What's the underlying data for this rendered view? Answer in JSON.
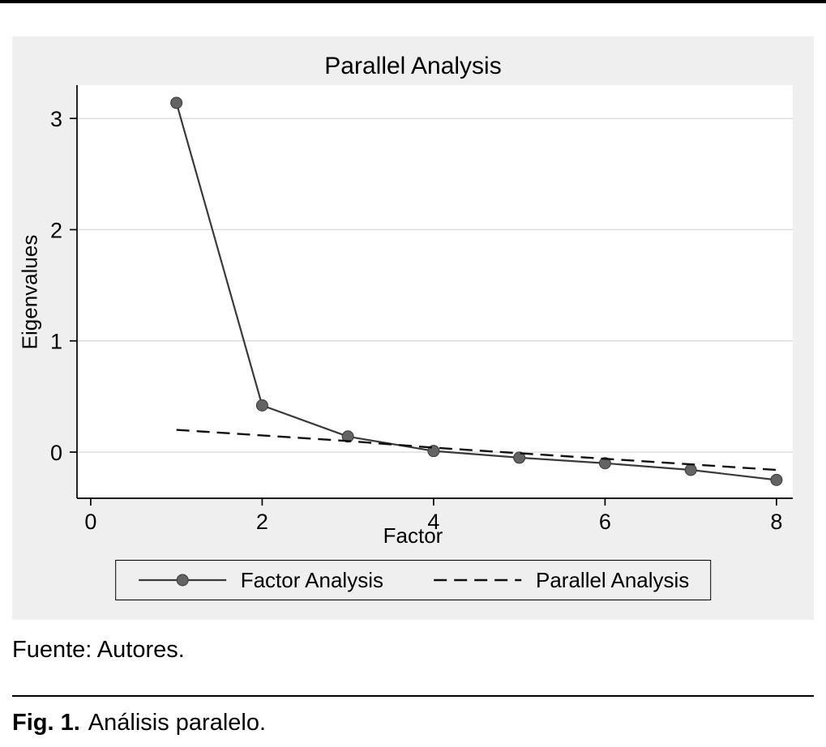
{
  "figure": {
    "source_note": "Fuente: Autores.",
    "caption_label": "Fig. 1.",
    "caption_text": "Análisis paralelo."
  },
  "chart_data": {
    "type": "line",
    "title": "Parallel Analysis",
    "xlabel": "Factor",
    "ylabel": "Eigenvalues",
    "xlim": [
      -0.16,
      8.19
    ],
    "ylim": [
      -0.415,
      3.3
    ],
    "xticks": [
      0,
      2,
      4,
      6,
      8
    ],
    "yticks": [
      0,
      1,
      2,
      3
    ],
    "grid": "horizontal",
    "legend_position": "bottom",
    "colors": {
      "panel_bg": "#efefef",
      "plot_bg": "#ffffff",
      "grid": "#dcdcdc",
      "axis": "#000000"
    },
    "series": [
      {
        "name": "Factor Analysis",
        "style": "solid",
        "marker": "circle",
        "color": "#3a3a3a",
        "marker_color": "#636363",
        "width": 2.2,
        "dash": "",
        "x": [
          1,
          2,
          3,
          4,
          5,
          6,
          7,
          8
        ],
        "y": [
          3.14,
          0.42,
          0.14,
          0.01,
          -0.05,
          -0.1,
          -0.16,
          -0.25
        ]
      },
      {
        "name": "Parallel Analysis",
        "style": "dashed",
        "marker": "none",
        "color": "#111111",
        "marker_color": "",
        "width": 2.4,
        "dash": "16 9",
        "x": [
          1,
          2,
          3,
          4,
          5,
          6,
          7,
          8
        ],
        "y": [
          0.2,
          0.15,
          0.1,
          0.04,
          -0.01,
          -0.06,
          -0.11,
          -0.16
        ]
      }
    ]
  }
}
